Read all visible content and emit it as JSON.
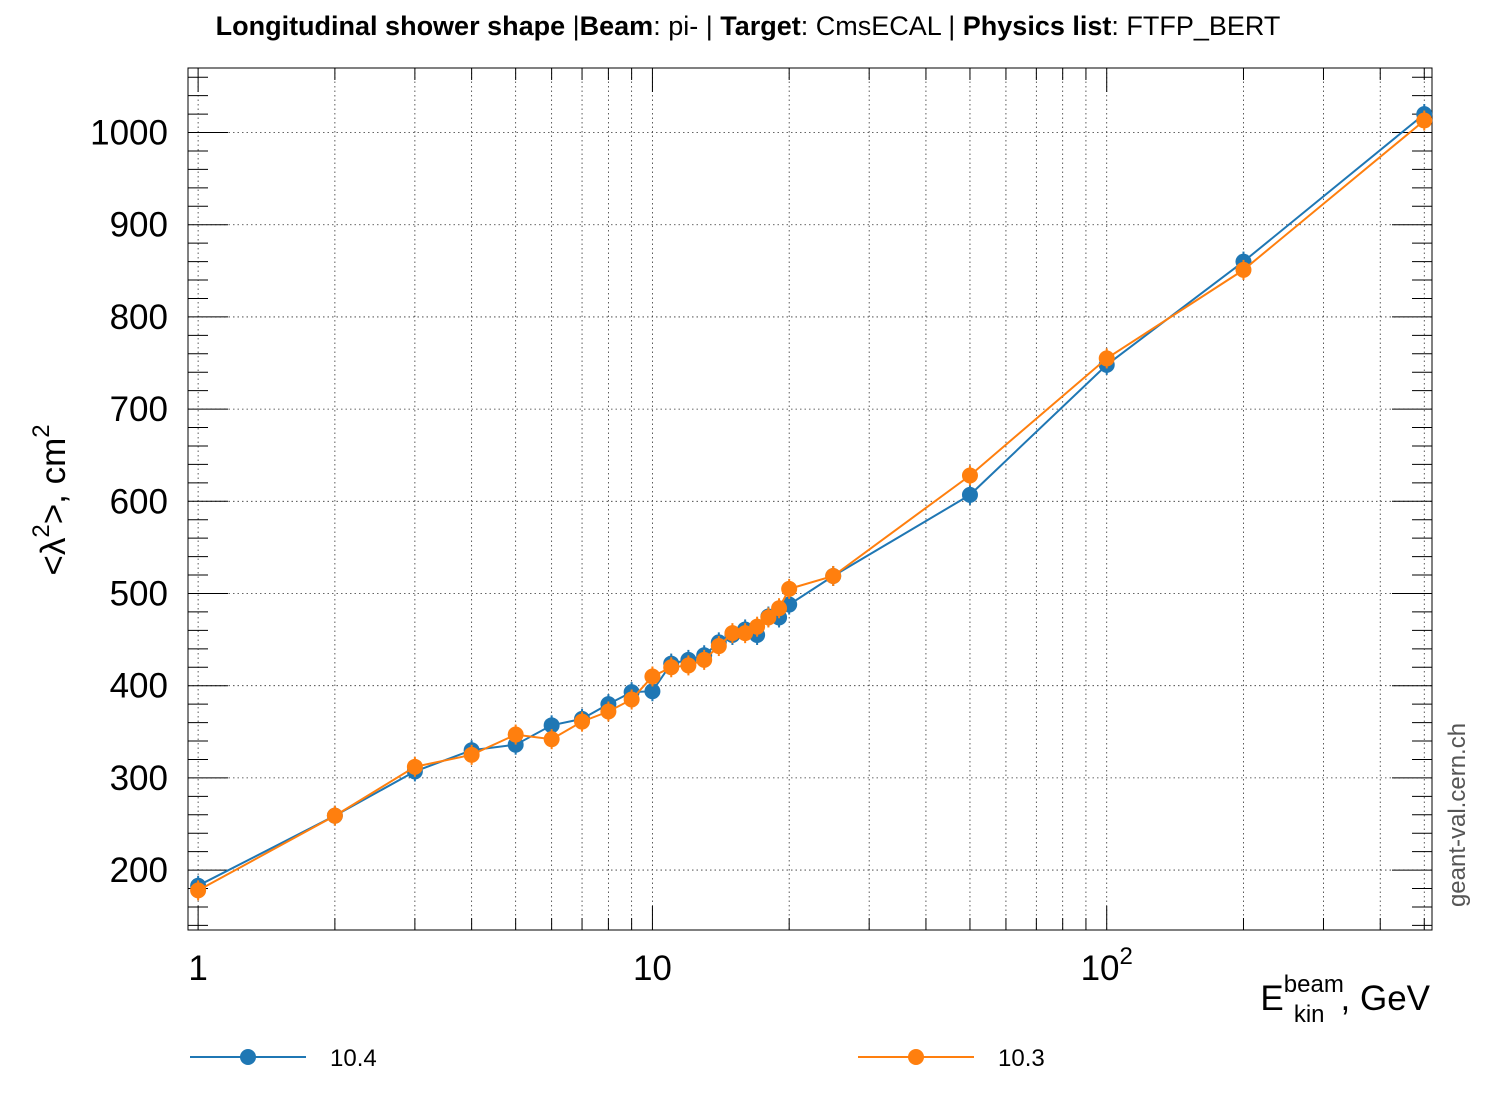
{
  "title": {
    "segments": [
      {
        "text": "Longitudinal shower shape ",
        "bold": true
      },
      {
        "text": " |",
        "bold": false
      },
      {
        "text": "Beam",
        "bold": true
      },
      {
        "text": ": pi- | ",
        "bold": false
      },
      {
        "text": "Target",
        "bold": true
      },
      {
        "text": ": CmsECAL | ",
        "bold": false
      },
      {
        "text": "Physics list",
        "bold": true
      },
      {
        "text": ": FTFP_BERT",
        "bold": false
      }
    ]
  },
  "watermark": "geant-val.cern.ch",
  "chart_data": {
    "type": "line",
    "xscale": "log",
    "xlim": [
      0.95,
      520
    ],
    "ylim": [
      135,
      1070
    ],
    "grid": true,
    "legend_position": "bottom",
    "xlabel": {
      "main": "E",
      "sup": "beam",
      "sub": "kin",
      "rest": ", GeV"
    },
    "ylabel": {
      "main": "<λ",
      "sup": "2",
      "rest": ">,  cm",
      "sup2": "2"
    },
    "x_ticks": [
      {
        "value": 1,
        "label": "1",
        "exp": ""
      },
      {
        "value": 10,
        "label": "10",
        "exp": ""
      },
      {
        "value": 100,
        "label": "10",
        "exp": "2"
      }
    ],
    "y_ticks": [
      200,
      300,
      400,
      500,
      600,
      700,
      800,
      900,
      1000
    ],
    "series": [
      {
        "name": "10.4",
        "color": "#1f77b4",
        "x": [
          1,
          2,
          3,
          4,
          5,
          6,
          7,
          8,
          9,
          10,
          11,
          12,
          13,
          14,
          15,
          16,
          17,
          18,
          19,
          20,
          25,
          50,
          100,
          200,
          500
        ],
        "y": [
          183,
          259,
          307,
          330,
          336,
          357,
          364,
          380,
          393,
          394,
          424,
          428,
          433,
          447,
          455,
          461,
          455,
          475,
          474,
          488,
          519,
          607,
          748,
          860,
          1020
        ]
      },
      {
        "name": "10.3",
        "color": "#ff7f0e",
        "x": [
          1,
          2,
          3,
          4,
          5,
          6,
          7,
          8,
          9,
          10,
          11,
          12,
          13,
          14,
          15,
          16,
          17,
          18,
          19,
          20,
          25,
          50,
          100,
          200,
          500
        ],
        "y": [
          178,
          259,
          312,
          325,
          347,
          342,
          361,
          372,
          385,
          410,
          420,
          422,
          428,
          443,
          457,
          457,
          464,
          474,
          484,
          505,
          519,
          628,
          755,
          851,
          1013
        ]
      }
    ]
  }
}
